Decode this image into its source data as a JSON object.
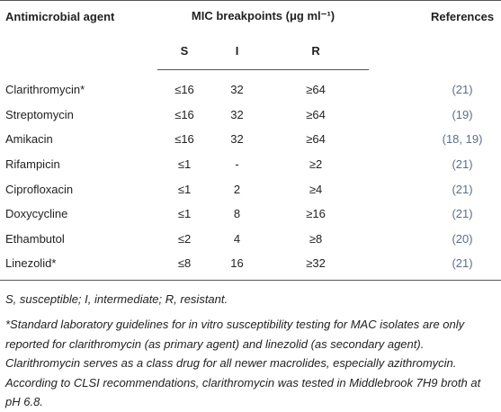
{
  "table": {
    "header": [
      "Antimicrobial agent",
      "MIC breakpoints (μg ml⁻¹)",
      "References"
    ],
    "subheader": [
      "S",
      "I",
      "R"
    ],
    "rows": [
      [
        "Clarithromycin*",
        "≤16",
        "32",
        "≥64",
        "(21)"
      ],
      [
        "Streptomycin",
        "≤16",
        "32",
        "≥64",
        "(19)"
      ],
      [
        "Amikacin",
        "≤16",
        "32",
        "≥64",
        "(18, 19)"
      ],
      [
        "Rifampicin",
        "≤1",
        "-",
        "≥2",
        "(21)"
      ],
      [
        "Ciprofloxacin",
        "≤1",
        "2",
        "≥4",
        "(21)"
      ],
      [
        "Doxycycline",
        "≤1",
        "8",
        "≥16",
        "(21)"
      ],
      [
        "Ethambutol",
        "≤2",
        "4",
        "≥8",
        "(20)"
      ],
      [
        "Linezolid*",
        "≤8",
        "16",
        "≥32",
        "(21)"
      ]
    ]
  },
  "notes": [
    "S, susceptible; I, intermediate; R, resistant.",
    "*Standard laboratory guidelines for in vitro susceptibility testing for MAC isolates are only reported for clarithromycin (as primary agent) and linezolid (as secondary agent). Clarithromycin serves as a class drug for all newer macrolides, especially azithromycin. According to CLSI recommendations, clarithromycin was tested in Middlebrook 7H9 broth at pH 6.8."
  ]
}
